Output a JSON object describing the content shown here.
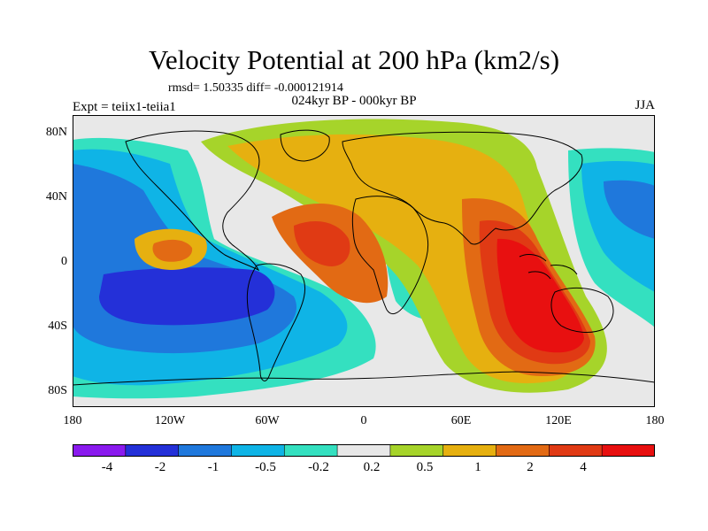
{
  "figure": {
    "title": "Velocity Potential at 200 hPa (km2/s)",
    "stats": "rmsd= 1.50335 diff= -0.000121914",
    "experiment": "Expt = teiix1-teiia1",
    "period": "024kyr BP - 000kyr BP",
    "season": "JJA"
  },
  "axes": {
    "y_ticks": [
      "80N",
      "40N",
      "0",
      "40S",
      "80S"
    ],
    "x_ticks": [
      "180",
      "120W",
      "60W",
      "0",
      "60E",
      "120E",
      "180"
    ]
  },
  "colorbar": {
    "labels": [
      "-4",
      "-2",
      "-1",
      "-0.5",
      "-0.2",
      "0.2",
      "0.5",
      "1",
      "2",
      "4"
    ],
    "colors": [
      "#8a1aee",
      "#2430d8",
      "#1f78dc",
      "#0fb4e6",
      "#34e0c0",
      "#e8e8e8",
      "#a6d42a",
      "#e6b010",
      "#e26a14",
      "#e03a14",
      "#e81010"
    ]
  },
  "map_colors": {
    "ocean_neutral": "#e8e8e8",
    "very_neg": "#2430d8",
    "neg_strong": "#1f78dc",
    "neg_med": "#0fb4e6",
    "neg_weak": "#34e0c0",
    "pos_weak": "#a6d42a",
    "pos_med": "#e6b010",
    "pos_strong": "#e26a14",
    "pos_vstrong": "#e03a14",
    "pos_max": "#e81010"
  }
}
